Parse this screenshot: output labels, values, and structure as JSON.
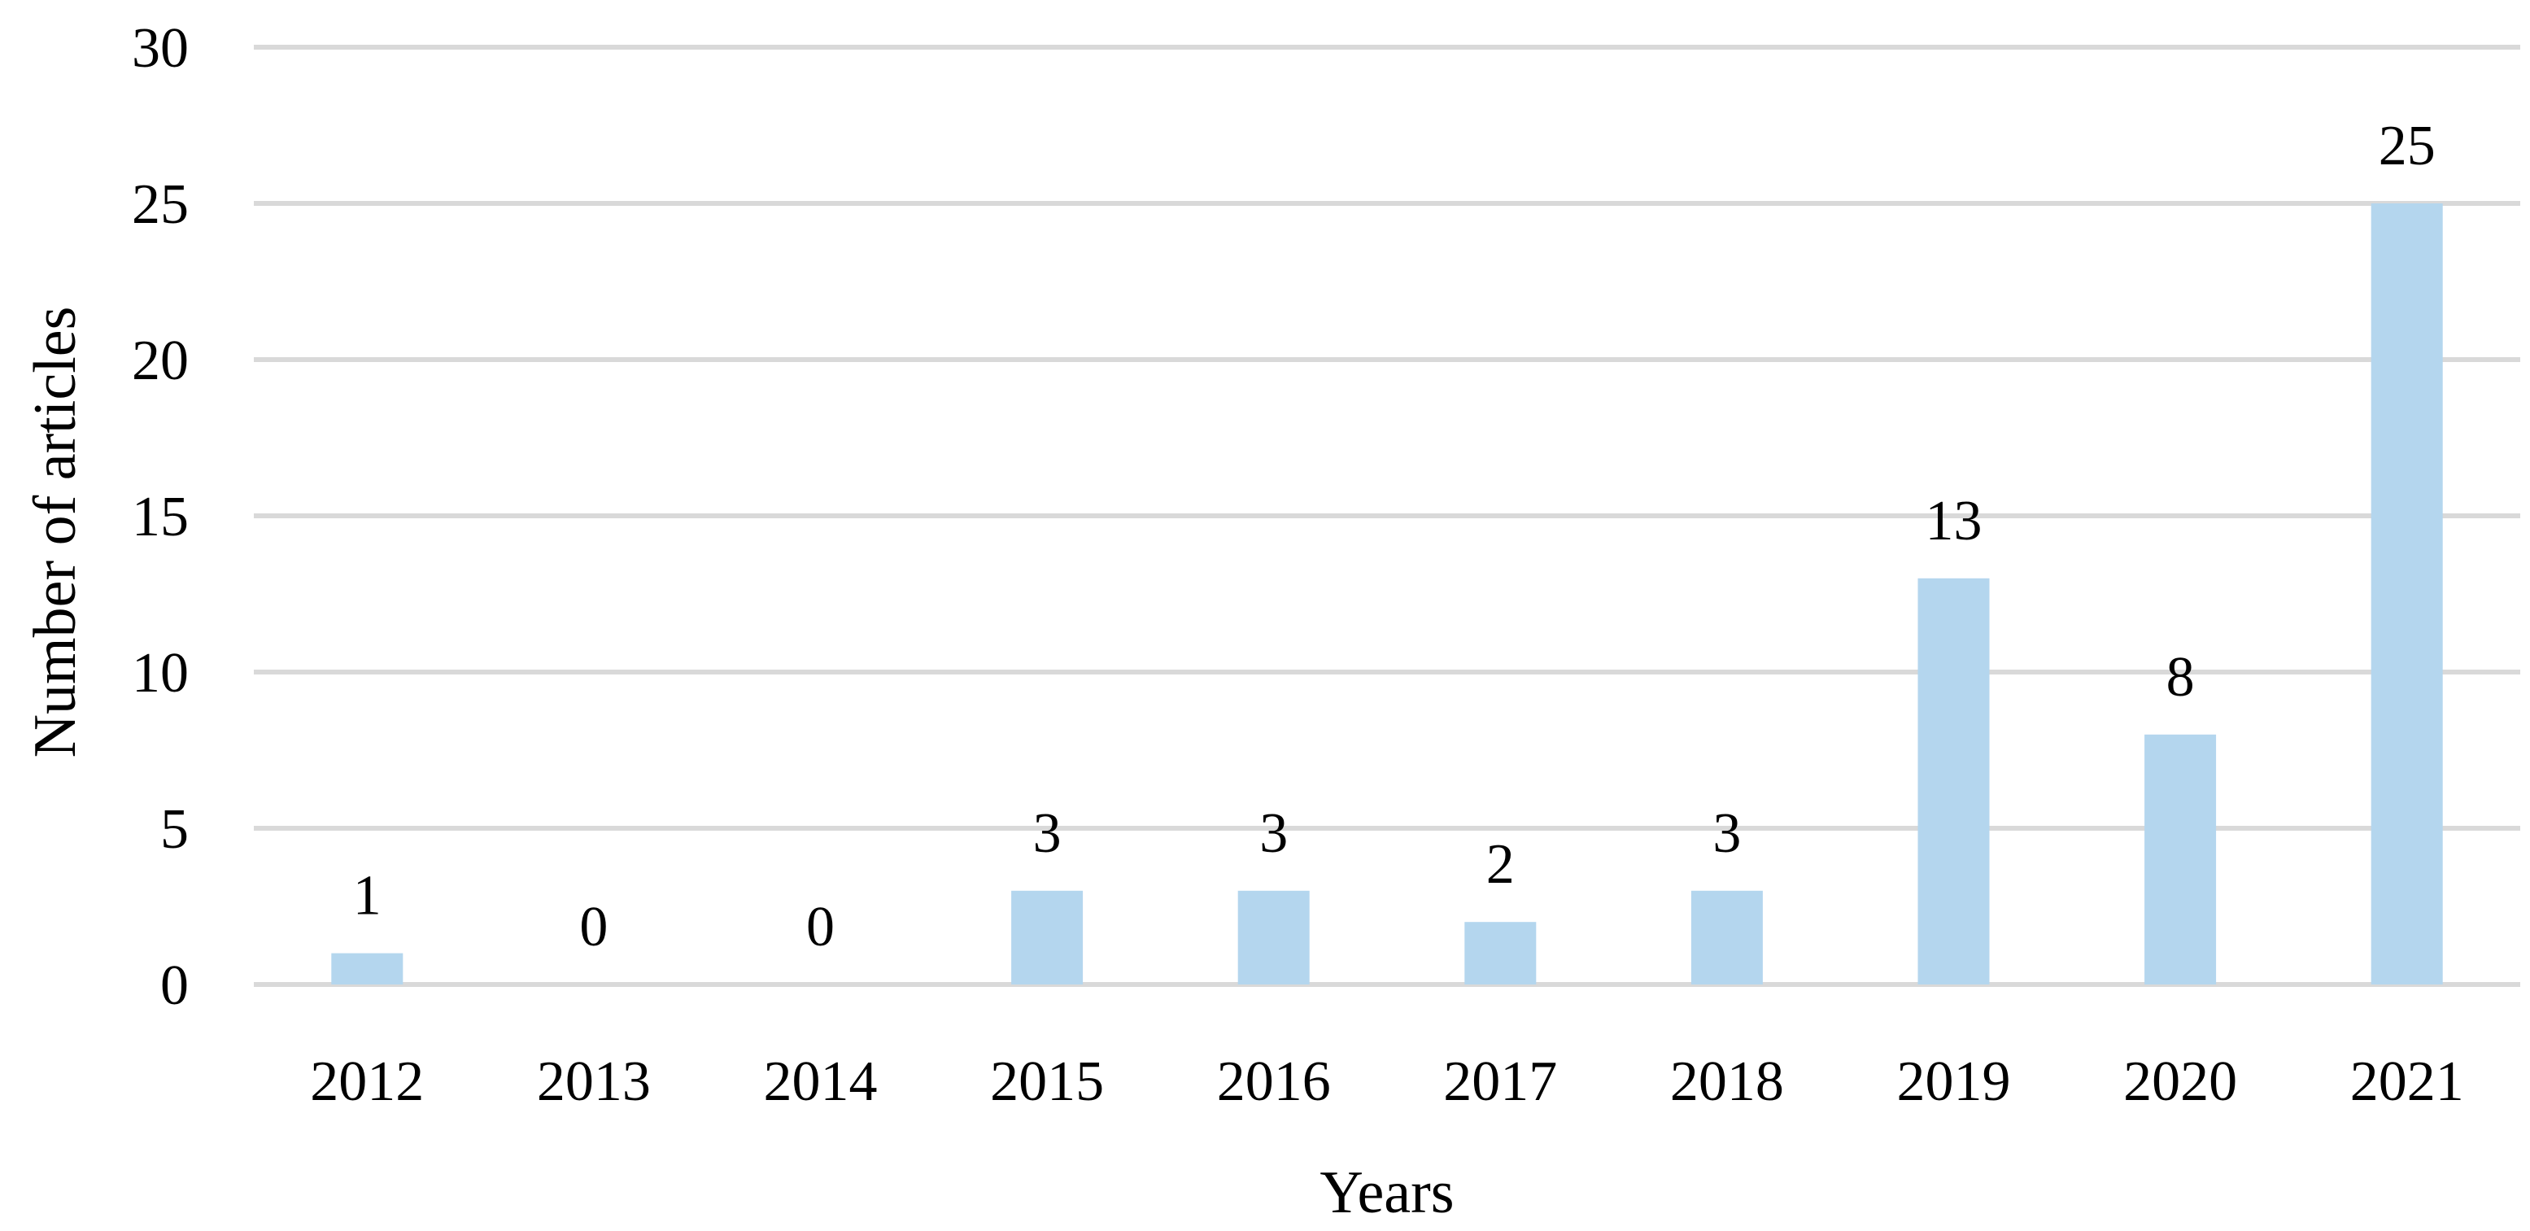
{
  "chart_data": {
    "type": "bar",
    "categories": [
      "2012",
      "2013",
      "2014",
      "2015",
      "2016",
      "2017",
      "2018",
      "2019",
      "2020",
      "2021"
    ],
    "values": [
      1,
      0,
      0,
      3,
      3,
      2,
      3,
      13,
      8,
      25
    ],
    "data_labels": [
      "1",
      "0",
      "0",
      "3",
      "3",
      "2",
      "3",
      "13",
      "8",
      "25"
    ],
    "title": "",
    "xlabel": "Years",
    "ylabel": "Number of articles",
    "ylim": [
      0,
      30
    ],
    "yticks": [
      "0",
      "5",
      "10",
      "15",
      "20",
      "25",
      "30"
    ],
    "grid": true,
    "legend": "none",
    "colors": {
      "bar": "#b4d6ee",
      "grid": "#d9d9d9",
      "text": "#000000"
    }
  }
}
